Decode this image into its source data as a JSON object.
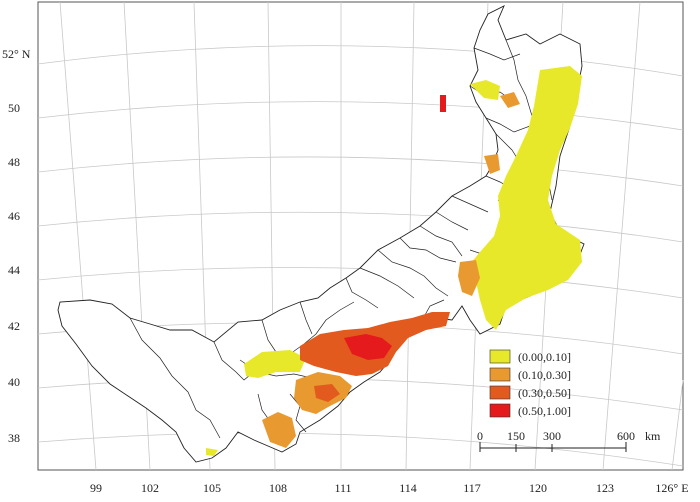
{
  "map": {
    "lat_labels": [
      "52° N",
      "50",
      "48",
      "46",
      "44",
      "42",
      "40",
      "38"
    ],
    "lon_labels": [
      "99",
      "102",
      "105",
      "108",
      "111",
      "114",
      "117",
      "120",
      "123",
      "126° E"
    ],
    "legend": {
      "items": [
        {
          "label": "(0.00,0.10]",
          "color": "#e8e82a"
        },
        {
          "label": "(0.10,0.30]",
          "color": "#e89a30"
        },
        {
          "label": "(0.30,0.50]",
          "color": "#e25a1e"
        },
        {
          "label": "(0.50,1.00]",
          "color": "#e41a1c"
        }
      ]
    },
    "scalebar": {
      "ticks": [
        "0",
        "150",
        "300",
        "600"
      ],
      "unit": "km"
    }
  }
}
